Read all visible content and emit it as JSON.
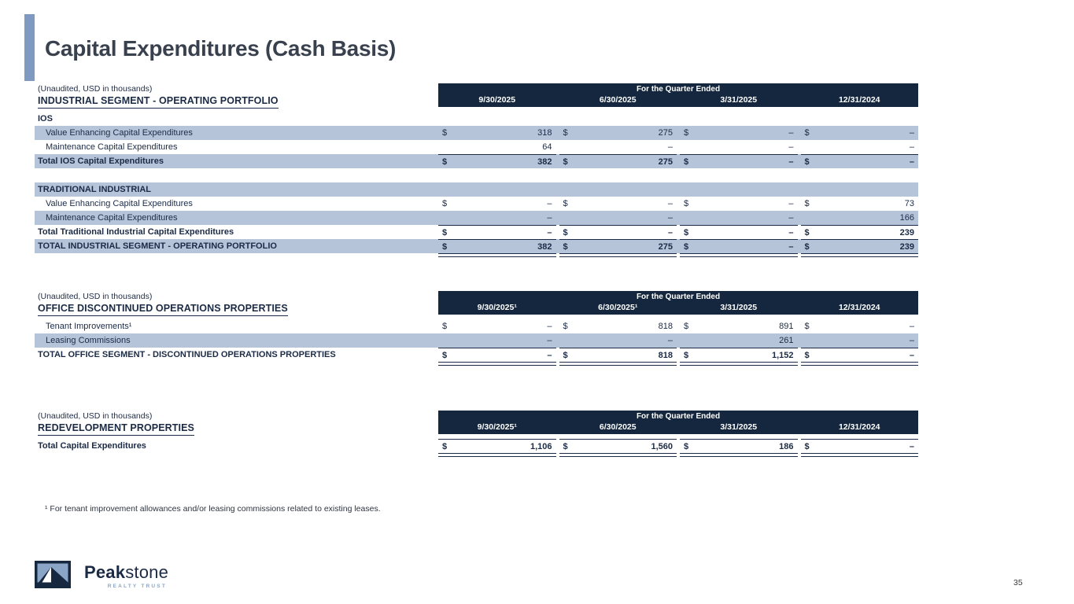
{
  "page": {
    "title": "Capital Expenditures (Cash Basis)",
    "footnote": "¹ For tenant improvement allowances and/or leasing commissions related to existing leases.",
    "page_number": "35"
  },
  "logo": {
    "brand_primary": "Peak",
    "brand_secondary": "stone",
    "tagline": "REALTY TRUST"
  },
  "colors": {
    "navy": "#14273e",
    "ink": "#1c2b45",
    "row_blue": "#b6c4da",
    "accent": "#7e9ac0",
    "steel": "#8aa5c6",
    "title": "#39414e"
  },
  "tables": [
    {
      "unaudited": "(Unaudited, USD in thousands)",
      "title": "INDUSTRIAL SEGMENT - OPERATING PORTFOLIO",
      "quarter_header": "For the Quarter Ended",
      "columns": [
        "9/30/2025",
        "6/30/2025",
        "3/31/2025",
        "12/31/2024"
      ],
      "rows": [
        {
          "label": "IOS",
          "bold": true,
          "bg": "white"
        },
        {
          "label": "Value Enhancing Capital Expenditures",
          "indent": true,
          "bg": "blue",
          "dollar": true,
          "values": [
            "318",
            "275",
            "–",
            "–"
          ]
        },
        {
          "label": "Maintenance Capital Expenditures",
          "indent": true,
          "bg": "white",
          "dollar": false,
          "values": [
            "64",
            "–",
            "–",
            "–"
          ]
        },
        {
          "label": "Total IOS Capital Expenditures",
          "bold": true,
          "bg": "blue",
          "dollar": true,
          "values": [
            "382",
            "275",
            "–",
            "–"
          ],
          "border_top": true
        },
        {
          "spacer": true
        },
        {
          "label": "TRADITIONAL INDUSTRIAL",
          "bold": true,
          "bg": "blue"
        },
        {
          "label": "Value Enhancing Capital Expenditures",
          "indent": true,
          "bg": "white",
          "dollar": true,
          "values": [
            "–",
            "–",
            "–",
            "73"
          ]
        },
        {
          "label": "Maintenance Capital Expenditures",
          "indent": true,
          "bg": "blue",
          "dollar": false,
          "values": [
            "–",
            "–",
            "–",
            "166"
          ]
        },
        {
          "label": "Total Traditional Industrial Capital Expenditures",
          "bold": true,
          "bg": "white",
          "dollar": true,
          "values": [
            "–",
            "–",
            "–",
            "239"
          ],
          "border_top": true
        },
        {
          "label": "TOTAL INDUSTRIAL SEGMENT - OPERATING PORTFOLIO",
          "bold": true,
          "bg": "blue",
          "dollar": true,
          "values": [
            "382",
            "275",
            "–",
            "239"
          ],
          "border_top": true,
          "border_bottom": "double"
        }
      ]
    },
    {
      "unaudited": "(Unaudited, USD in thousands)",
      "title": "OFFICE DISCONTINUED OPERATIONS PROPERTIES",
      "quarter_header": "For the Quarter Ended",
      "columns": [
        "9/30/2025¹",
        "6/30/2025¹",
        "3/31/2025",
        "12/31/2024"
      ],
      "rows": [
        {
          "label": "Tenant Improvements¹",
          "indent": true,
          "bg": "white",
          "dollar": true,
          "values": [
            "–",
            "818",
            "891",
            "–"
          ]
        },
        {
          "label": "Leasing Commissions",
          "indent": true,
          "bg": "blue",
          "dollar": false,
          "values": [
            "–",
            "–",
            "261",
            "–"
          ]
        },
        {
          "label": "TOTAL OFFICE SEGMENT - DISCONTINUED OPERATIONS PROPERTIES",
          "bold": true,
          "bg": "white",
          "dollar": true,
          "values": [
            "–",
            "818",
            "1,152",
            "–"
          ],
          "border_top": true,
          "border_bottom": "double"
        }
      ]
    },
    {
      "unaudited": "(Unaudited, USD in thousands)",
      "title": "REDEVELOPMENT PROPERTIES",
      "quarter_header": "For the Quarter Ended",
      "columns": [
        "9/30/2025¹",
        "6/30/2025",
        "3/31/2025",
        "12/31/2024"
      ],
      "rows": [
        {
          "label": "Total Capital Expenditures",
          "bold": true,
          "bg": "white",
          "dollar": true,
          "values": [
            "1,106",
            "1,560",
            "186",
            "–"
          ],
          "border_top": true,
          "border_bottom": "double"
        }
      ]
    }
  ]
}
